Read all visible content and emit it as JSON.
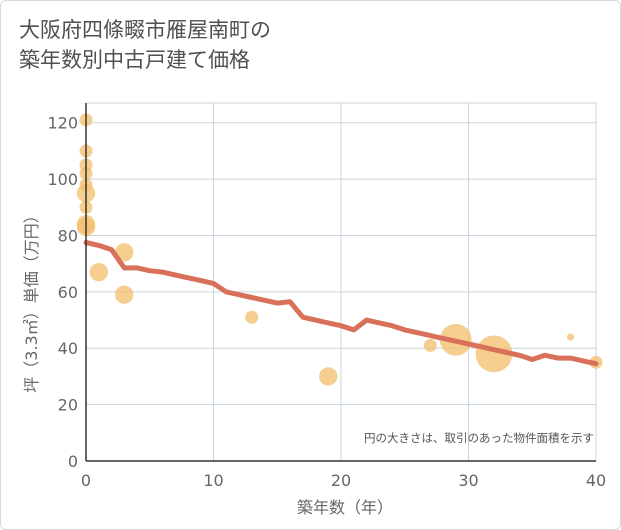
{
  "chart_data": {
    "type": "scatter",
    "title": "大阪府四條畷市雁屋南町の\n築年数別中古戸建て価格",
    "xlabel": "築年数（年）",
    "ylabel": "坪（3.3㎡）単価（万円）",
    "xlim": [
      0,
      40
    ],
    "ylim": [
      0,
      127
    ],
    "xticks": [
      0,
      10,
      20,
      30,
      40
    ],
    "yticks": [
      0,
      20,
      40,
      60,
      80,
      100,
      120
    ],
    "annotation": "円の大きさは、取引のあった物件面積を示す",
    "colors": {
      "points": "#f3c070",
      "trend": "#d9705a",
      "grid": "#c9d4de"
    },
    "points": [
      {
        "x": 0,
        "y": 121,
        "size": 1
      },
      {
        "x": 0,
        "y": 110,
        "size": 1
      },
      {
        "x": 0,
        "y": 105,
        "size": 1
      },
      {
        "x": 0,
        "y": 102,
        "size": 1
      },
      {
        "x": 0,
        "y": 98,
        "size": 1
      },
      {
        "x": 0,
        "y": 95,
        "size": 2
      },
      {
        "x": 0,
        "y": 90,
        "size": 1
      },
      {
        "x": 0,
        "y": 84,
        "size": 2
      },
      {
        "x": 0,
        "y": 83,
        "size": 2
      },
      {
        "x": 1,
        "y": 67,
        "size": 2
      },
      {
        "x": 3,
        "y": 74,
        "size": 2
      },
      {
        "x": 3,
        "y": 59,
        "size": 2
      },
      {
        "x": 13,
        "y": 51,
        "size": 1
      },
      {
        "x": 19,
        "y": 30,
        "size": 2
      },
      {
        "x": 27,
        "y": 41,
        "size": 1
      },
      {
        "x": 29,
        "y": 43,
        "size": 6
      },
      {
        "x": 32,
        "y": 38,
        "size": 8
      },
      {
        "x": 38,
        "y": 44,
        "size": 0.3
      },
      {
        "x": 40,
        "y": 35,
        "size": 1
      }
    ],
    "trend": {
      "x": [
        0,
        1,
        2,
        3,
        4,
        5,
        6,
        7,
        8,
        9,
        10,
        11,
        12,
        13,
        14,
        15,
        16,
        17,
        18,
        19,
        20,
        21,
        22,
        23,
        24,
        25,
        26,
        27,
        28,
        29,
        30,
        31,
        32,
        33,
        34,
        35,
        36,
        37,
        38,
        39,
        40
      ],
      "y": [
        77.5,
        76.5,
        75,
        68.5,
        68.5,
        67.5,
        67,
        66,
        65,
        64,
        63,
        60,
        59,
        58,
        57,
        56,
        56.5,
        51,
        50,
        49,
        48,
        46.5,
        50,
        49,
        48,
        46.5,
        45.5,
        44.5,
        43.5,
        42.5,
        41.5,
        40.5,
        39.5,
        38.5,
        37.5,
        36,
        37.5,
        36.5,
        36.5,
        35.5,
        34.5
      ]
    }
  }
}
